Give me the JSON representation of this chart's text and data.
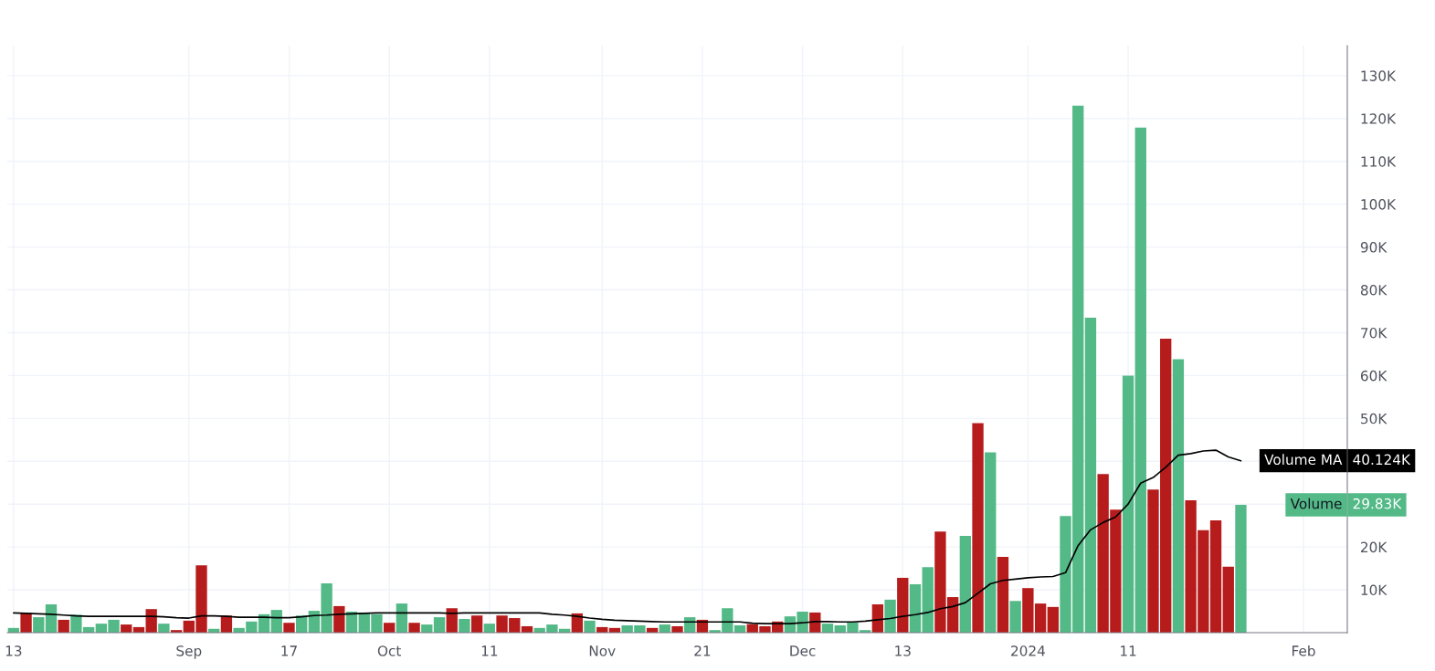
{
  "chart_data": {
    "type": "bar",
    "categories": [
      "13",
      null,
      null,
      null,
      null,
      null,
      null,
      null,
      null,
      null,
      null,
      null,
      null,
      null,
      "Sep",
      null,
      null,
      null,
      null,
      null,
      null,
      null,
      "17",
      null,
      null,
      null,
      null,
      null,
      null,
      null,
      "Oct",
      null,
      null,
      null,
      null,
      null,
      null,
      null,
      "11",
      null,
      null,
      null,
      null,
      null,
      null,
      null,
      null,
      "Nov",
      null,
      null,
      null,
      null,
      null,
      null,
      null,
      "21",
      null,
      null,
      null,
      null,
      null,
      null,
      null,
      "Dec",
      null,
      null,
      null,
      null,
      null,
      null,
      null,
      "13",
      null,
      null,
      null,
      null,
      null,
      null,
      null,
      null,
      null,
      "2024",
      null,
      null,
      null,
      null,
      null,
      null,
      null,
      "11",
      null,
      null,
      null,
      null,
      null,
      null,
      null,
      null,
      null,
      null,
      null,
      null,
      null,
      "Feb",
      null,
      null,
      null
    ],
    "series": [
      {
        "name": "Volume",
        "values": [
          1100,
          4600,
          3600,
          6600,
          3000,
          4200,
          1300,
          2100,
          3000,
          1900,
          1300,
          5500,
          2100,
          600,
          2800,
          15700,
          900,
          4000,
          1100,
          2600,
          4300,
          5300,
          2300,
          4000,
          5100,
          11500,
          6200,
          4900,
          4700,
          4300,
          2300,
          6800,
          2300,
          1900,
          3600,
          5700,
          3200,
          4000,
          2100,
          4000,
          3400,
          1500,
          1100,
          1900,
          900,
          4500,
          2800,
          1300,
          1100,
          1700,
          1700,
          1100,
          1900,
          1500,
          3600,
          3000,
          600,
          5700,
          1700,
          2000,
          1500,
          2600,
          3800,
          4900,
          4700,
          2100,
          1700,
          2400,
          600,
          6600,
          7700,
          12800,
          11300,
          15300,
          23600,
          8300,
          22600,
          48900,
          42100,
          17700,
          7400,
          10400,
          6800,
          6000,
          27200,
          123000,
          73500,
          37000,
          28700,
          60000,
          117900,
          33400,
          68600,
          63800,
          30900,
          23900,
          26200,
          15400,
          29830,
          null,
          null,
          null,
          null,
          null,
          null,
          null,
          null
        ],
        "colors": [
          "#53b987",
          "#b71c1c",
          "#53b987",
          "#53b987",
          "#b71c1c",
          "#53b987",
          "#53b987",
          "#53b987",
          "#53b987",
          "#b71c1c",
          "#b71c1c",
          "#b71c1c",
          "#53b987",
          "#b71c1c",
          "#b71c1c",
          "#b71c1c",
          "#53b987",
          "#b71c1c",
          "#53b987",
          "#53b987",
          "#53b987",
          "#53b987",
          "#b71c1c",
          "#53b987",
          "#53b987",
          "#53b987",
          "#b71c1c",
          "#53b987",
          "#53b987",
          "#53b987",
          "#b71c1c",
          "#53b987",
          "#b71c1c",
          "#53b987",
          "#53b987",
          "#b71c1c",
          "#53b987",
          "#b71c1c",
          "#53b987",
          "#b71c1c",
          "#b71c1c",
          "#b71c1c",
          "#53b987",
          "#53b987",
          "#53b987",
          "#b71c1c",
          "#53b987",
          "#b71c1c",
          "#b71c1c",
          "#53b987",
          "#53b987",
          "#b71c1c",
          "#53b987",
          "#b71c1c",
          "#53b987",
          "#b71c1c",
          "#53b987",
          "#53b987",
          "#53b987",
          "#b71c1c",
          "#b71c1c",
          "#b71c1c",
          "#53b987",
          "#53b987",
          "#b71c1c",
          "#53b987",
          "#53b987",
          "#53b987",
          "#53b987",
          "#b71c1c",
          "#53b987",
          "#b71c1c",
          "#53b987",
          "#53b987",
          "#b71c1c",
          "#b71c1c",
          "#53b987",
          "#b71c1c",
          "#53b987",
          "#b71c1c",
          "#53b987",
          "#b71c1c",
          "#b71c1c",
          "#b71c1c",
          "#53b987",
          "#53b987",
          "#53b987",
          "#b71c1c",
          "#b71c1c",
          "#53b987",
          "#53b987",
          "#b71c1c",
          "#b71c1c",
          "#53b987",
          "#b71c1c",
          "#b71c1c",
          "#b71c1c",
          "#b71c1c",
          "#53b987",
          "#53b987",
          "#53b987",
          "#53b987",
          "#53b987",
          "#53b987",
          "#53b987",
          "#53b987",
          "#53b987"
        ]
      },
      {
        "name": "Volume MA",
        "type": "line",
        "color": "#000000",
        "values": [
          4600,
          4500,
          4400,
          4300,
          4100,
          3900,
          3800,
          3800,
          3800,
          3800,
          3800,
          3800,
          3700,
          3500,
          3400,
          3900,
          3900,
          3800,
          3600,
          3600,
          3600,
          3500,
          3500,
          3700,
          4000,
          4100,
          4300,
          4400,
          4500,
          4600,
          4600,
          4600,
          4600,
          4600,
          4600,
          4500,
          4600,
          4600,
          4600,
          4600,
          4600,
          4600,
          4600,
          4300,
          4100,
          3800,
          3400,
          3100,
          2900,
          2800,
          2700,
          2600,
          2500,
          2500,
          2500,
          2500,
          2500,
          2500,
          2500,
          2200,
          2100,
          2100,
          2100,
          2300,
          2600,
          2600,
          2500,
          2500,
          2700,
          3000,
          3300,
          3800,
          4200,
          4700,
          5600,
          6100,
          7000,
          9200,
          11400,
          12200,
          12500,
          12800,
          13000,
          13100,
          14000,
          20300,
          24000,
          25700,
          27000,
          30000,
          34900,
          36200,
          38600,
          41400,
          41800,
          42400,
          42600,
          41000,
          40124,
          null,
          null,
          null,
          null,
          null,
          null,
          null,
          null
        ]
      }
    ],
    "ylim": [
      0,
      137000
    ],
    "yticks": [
      {
        "value": 10000,
        "label": "10K"
      },
      {
        "value": 20000,
        "label": "20K"
      },
      {
        "value": 30000,
        "label": null
      },
      {
        "value": 40000,
        "label": null
      },
      {
        "value": 50000,
        "label": "50K"
      },
      {
        "value": 60000,
        "label": "60K"
      },
      {
        "value": 70000,
        "label": "70K"
      },
      {
        "value": 80000,
        "label": "80K"
      },
      {
        "value": 90000,
        "label": "90K"
      },
      {
        "value": 100000,
        "label": "100K"
      },
      {
        "value": 110000,
        "label": "110K"
      },
      {
        "value": 120000,
        "label": "120K"
      },
      {
        "value": 130000,
        "label": "130K"
      }
    ],
    "grid": true,
    "legend": "right",
    "annotations": [
      "29.83K",
      "40.124K"
    ]
  }
}
